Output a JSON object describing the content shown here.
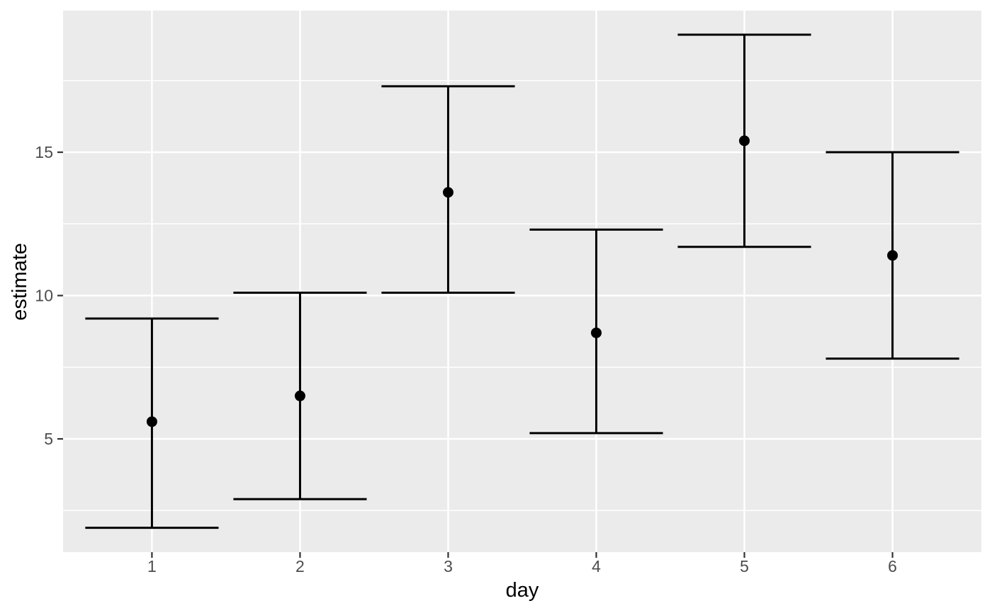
{
  "figure": {
    "background_color": "#FFFFFF",
    "panel_background_color": "#EBEBEB",
    "grid_color": "#FFFFFF",
    "tick_mark_color": "#333333",
    "tick_label_color": "#4D4D4D",
    "axis_title_color": "#000000",
    "data_color": "#000000"
  },
  "chart_data": {
    "type": "scatter",
    "subtype": "point-estimates-with-error-bars",
    "title": "",
    "xlabel": "day",
    "ylabel": "estimate",
    "x": [
      1,
      2,
      3,
      4,
      5,
      6
    ],
    "x_tick_labels": [
      "1",
      "2",
      "3",
      "4",
      "5",
      "6"
    ],
    "series": [
      {
        "name": "estimate",
        "values": [
          5.6,
          6.5,
          13.6,
          8.7,
          15.4,
          11.4
        ]
      },
      {
        "name": "lower",
        "values": [
          1.9,
          2.9,
          10.1,
          5.2,
          11.7,
          7.8
        ]
      },
      {
        "name": "upper",
        "values": [
          9.2,
          10.1,
          17.3,
          12.3,
          19.1,
          15.0
        ]
      }
    ],
    "y_major_ticks": [
      5,
      10,
      15
    ],
    "y_major_tick_labels": [
      "5",
      "10",
      "15"
    ],
    "y_minor_gridlines": [
      2.5,
      7.5,
      12.5,
      17.5
    ],
    "ylim": [
      1.05,
      19.94
    ],
    "x_scale": "discrete",
    "grid": true,
    "legend_position": "none",
    "error_bar_cap_halfwidth_units": 0.45
  }
}
